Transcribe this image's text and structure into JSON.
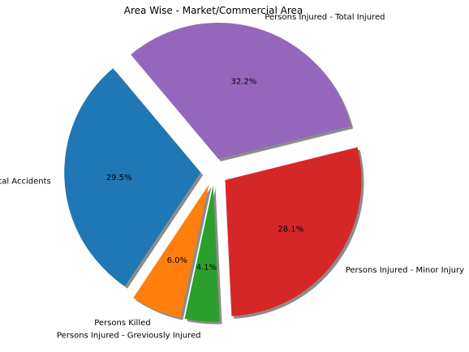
{
  "chart_data": {
    "type": "pie",
    "title": "Area Wise - Market/Commercial Area",
    "shadow": true,
    "exploded": true,
    "slices": [
      {
        "label": "Total Accidents",
        "percent": 29.5,
        "pct_label": "29.5%",
        "color": "#1f77b4"
      },
      {
        "label": "Persons Killed",
        "percent": 6.0,
        "pct_label": "6.0%",
        "color": "#ff7f0e"
      },
      {
        "label": "Persons Injured - Greviously Injured",
        "percent": 4.1,
        "pct_label": "4.1%",
        "color": "#2ca02c"
      },
      {
        "label": "Persons Injured - Minor Injury",
        "percent": 28.1,
        "pct_label": "28.1%",
        "color": "#d62728"
      },
      {
        "label": "Persons Injured - Total Injured",
        "percent": 32.2,
        "pct_label": "32.2%",
        "color": "#9467bd"
      }
    ]
  }
}
